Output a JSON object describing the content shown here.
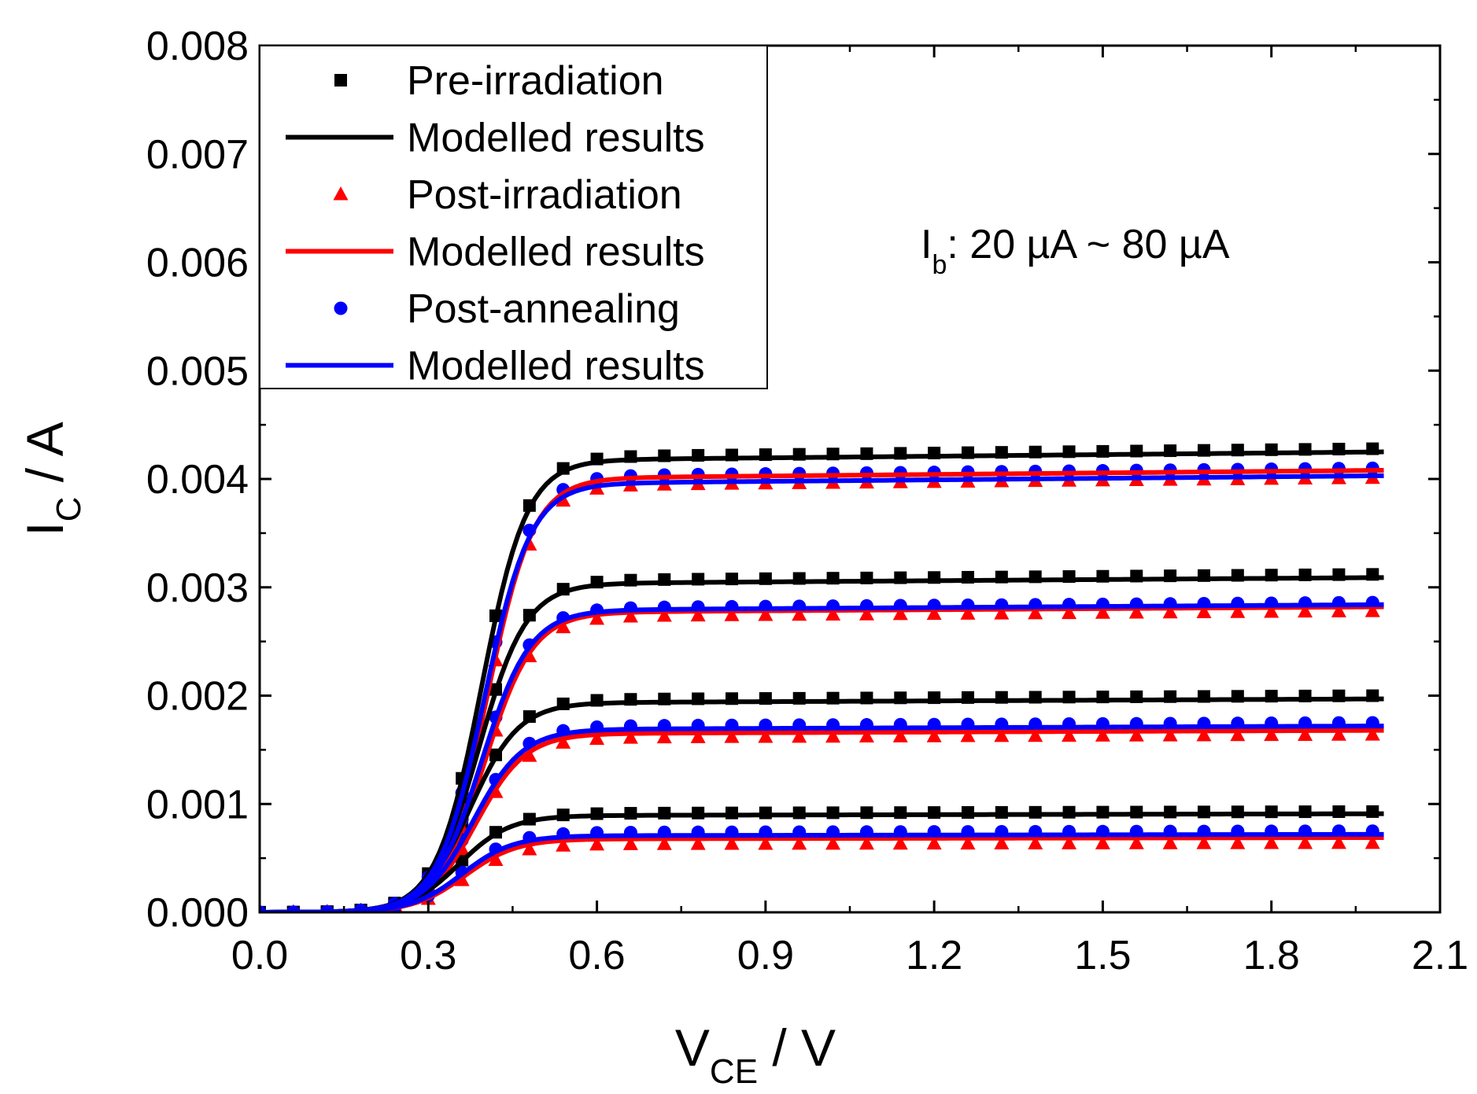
{
  "chart_data": {
    "type": "scatter",
    "xlabel": {
      "main": "V",
      "sub": "CE",
      "rest": " / V"
    },
    "ylabel": {
      "main": "I",
      "sub": "C",
      "rest": " / A"
    },
    "xlim": [
      0.0,
      2.1
    ],
    "ylim": [
      0.0,
      0.008
    ],
    "x_ticks": [
      "0.0",
      "0.3",
      "0.6",
      "0.9",
      "1.2",
      "1.5",
      "1.8",
      "2.1"
    ],
    "y_ticks": [
      "0.000",
      "0.001",
      "0.002",
      "0.003",
      "0.004",
      "0.005",
      "0.006",
      "0.007",
      "0.008"
    ],
    "legend_position": "top-left",
    "annotation": {
      "main": "I",
      "sub": "b",
      "rest": ": 20 µA ~ 80 µA"
    },
    "sat_voltage_anchor": 0.47,
    "series": [
      {
        "name": "Pre-irradiation",
        "kind": "markers",
        "marker": "square",
        "color": "#000000",
        "curves": [
          {
            "saturation": 0.00093,
            "x0": 0.355,
            "s": 0.045
          },
          {
            "saturation": 0.002,
            "x0": 0.375,
            "s": 0.043
          },
          {
            "saturation": 0.00312,
            "x0": 0.39,
            "s": 0.042
          },
          {
            "saturation": 0.00428,
            "x0": 0.395,
            "s": 0.04
          }
        ]
      },
      {
        "name": "Modelled results",
        "kind": "line",
        "color": "#000000",
        "curves": [
          {
            "saturation": 0.00091,
            "x0": 0.355,
            "s": 0.045
          },
          {
            "saturation": 0.00197,
            "x0": 0.375,
            "s": 0.043
          },
          {
            "saturation": 0.00309,
            "x0": 0.39,
            "s": 0.042
          },
          {
            "saturation": 0.00425,
            "x0": 0.395,
            "s": 0.04
          }
        ]
      },
      {
        "name": "Post-irradiation",
        "kind": "markers",
        "marker": "triangle",
        "color": "#ff0000",
        "curves": [
          {
            "saturation": 0.00064,
            "x0": 0.365,
            "s": 0.046
          },
          {
            "saturation": 0.00164,
            "x0": 0.385,
            "s": 0.044
          },
          {
            "saturation": 0.00278,
            "x0": 0.4,
            "s": 0.043
          },
          {
            "saturation": 0.00401,
            "x0": 0.405,
            "s": 0.041
          }
        ]
      },
      {
        "name": "Modelled results",
        "kind": "line",
        "color": "#ff0000",
        "curves": [
          {
            "saturation": 0.00069,
            "x0": 0.365,
            "s": 0.046
          },
          {
            "saturation": 0.00168,
            "x0": 0.385,
            "s": 0.044
          },
          {
            "saturation": 0.00282,
            "x0": 0.4,
            "s": 0.043
          },
          {
            "saturation": 0.00408,
            "x0": 0.405,
            "s": 0.041
          }
        ]
      },
      {
        "name": "Post-annealing",
        "kind": "markers",
        "marker": "circle",
        "color": "#0000ff",
        "curves": [
          {
            "saturation": 0.00075,
            "x0": 0.36,
            "s": 0.045
          },
          {
            "saturation": 0.00175,
            "x0": 0.38,
            "s": 0.044
          },
          {
            "saturation": 0.00286,
            "x0": 0.395,
            "s": 0.043
          },
          {
            "saturation": 0.0041,
            "x0": 0.4,
            "s": 0.041
          }
        ]
      },
      {
        "name": "Modelled results",
        "kind": "line",
        "color": "#0000ff",
        "curves": [
          {
            "saturation": 0.00072,
            "x0": 0.36,
            "s": 0.045
          },
          {
            "saturation": 0.00172,
            "x0": 0.38,
            "s": 0.044
          },
          {
            "saturation": 0.00284,
            "x0": 0.395,
            "s": 0.043
          },
          {
            "saturation": 0.00403,
            "x0": 0.4,
            "s": 0.041
          }
        ]
      }
    ]
  }
}
